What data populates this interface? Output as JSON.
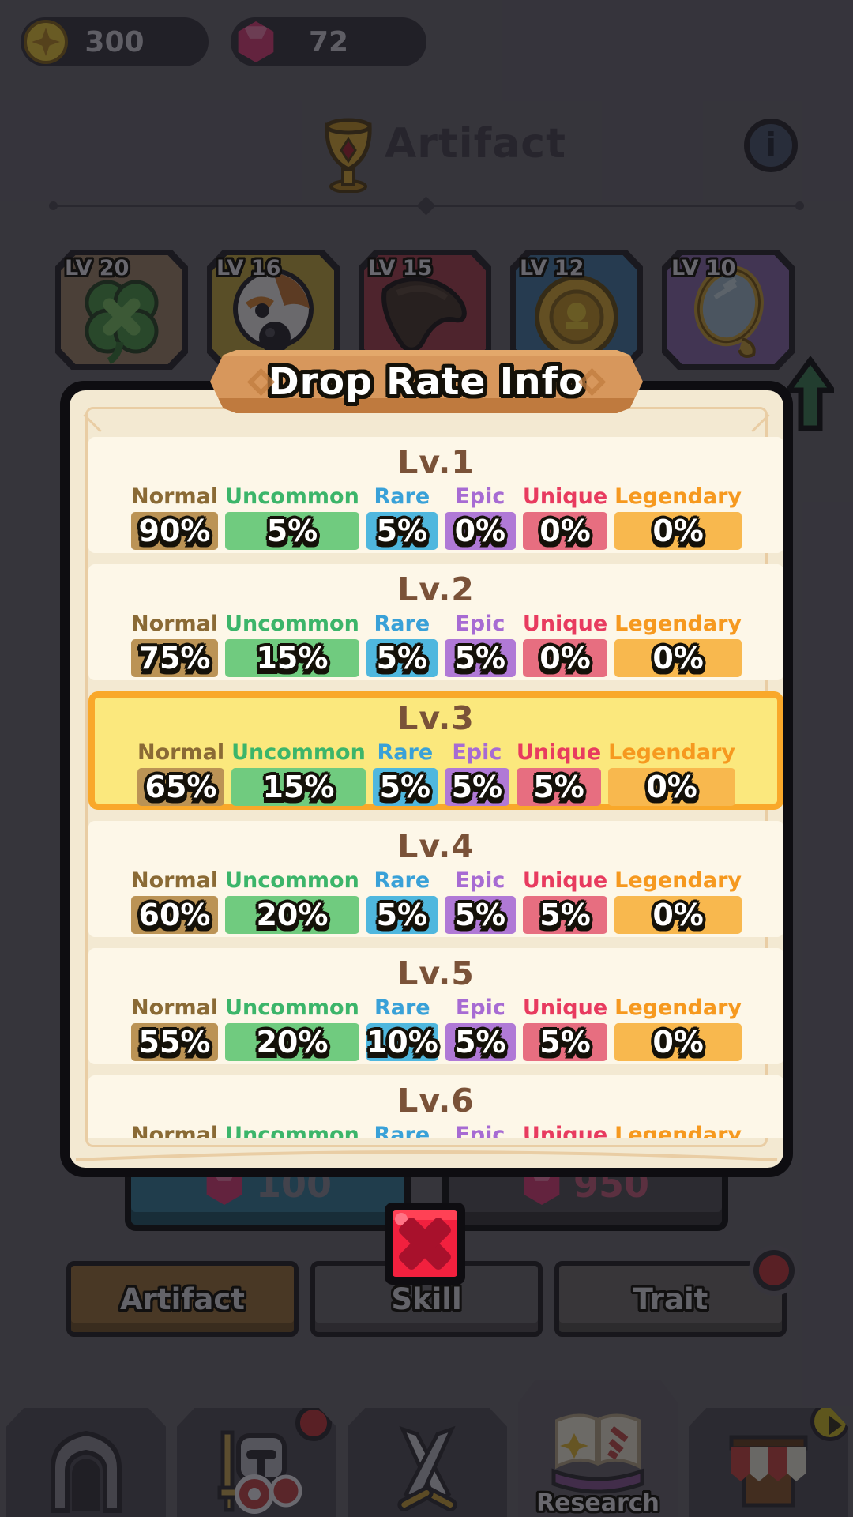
{
  "currency": {
    "gold": "300",
    "gems": "72"
  },
  "header": {
    "title": "Artifact"
  },
  "artifact_cards": [
    {
      "level": "LV 20",
      "icon": "clover",
      "color": "#a0866f"
    },
    {
      "level": "LV 16",
      "icon": "bird",
      "color": "#c2a647"
    },
    {
      "level": "LV 15",
      "icon": "horn",
      "color": "#a84355"
    },
    {
      "level": "LV 12",
      "icon": "medal",
      "color": "#487ba6"
    },
    {
      "level": "LV 10",
      "icon": "mirror",
      "color": "#8a6bae"
    }
  ],
  "modal": {
    "title": "Drop Rate Info",
    "rarities": [
      {
        "label": "Normal",
        "label_color": "#8a6a35",
        "cell_color": "#bb9355"
      },
      {
        "label": "Uncommon",
        "label_color": "#3cb56a",
        "cell_color": "#70cb7f"
      },
      {
        "label": "Rare",
        "label_color": "#39a1d8",
        "cell_color": "#4fb7de"
      },
      {
        "label": "Epic",
        "label_color": "#a76bd3",
        "cell_color": "#b079d6"
      },
      {
        "label": "Unique",
        "label_color": "#e83b5f",
        "cell_color": "#e76e80"
      },
      {
        "label": "Legendary",
        "label_color": "#f6991f",
        "cell_color": "#f8b84e"
      }
    ],
    "levels": [
      {
        "name": "Lv.1",
        "values": [
          "90%",
          "5%",
          "5%",
          "0%",
          "0%",
          "0%"
        ],
        "highlighted": false
      },
      {
        "name": "Lv.2",
        "values": [
          "75%",
          "15%",
          "5%",
          "5%",
          "0%",
          "0%"
        ],
        "highlighted": false
      },
      {
        "name": "Lv.3",
        "values": [
          "65%",
          "15%",
          "5%",
          "5%",
          "5%",
          "0%"
        ],
        "highlighted": true
      },
      {
        "name": "Lv.4",
        "values": [
          "60%",
          "20%",
          "5%",
          "5%",
          "5%",
          "0%"
        ],
        "highlighted": false
      },
      {
        "name": "Lv.5",
        "values": [
          "55%",
          "20%",
          "10%",
          "5%",
          "5%",
          "0%"
        ],
        "highlighted": false
      },
      {
        "name": "Lv.6",
        "values": [],
        "highlighted": false
      }
    ],
    "highlight": {
      "bg": "#fbe87d",
      "border": "#f9a82a"
    },
    "section_bg": "#fdf7e8"
  },
  "upgrade_buttons": [
    {
      "cost": "100",
      "icon": "gem",
      "bg": "#3a7f9e",
      "text_color": "#8e8c9d"
    },
    {
      "cost": "950",
      "icon": "gem",
      "bg": "#57545e",
      "text_color": "#c65f80"
    }
  ],
  "category_tabs": [
    {
      "label": "Artifact",
      "active": true,
      "bg": "#9c7440"
    },
    {
      "label": "Skill",
      "active": false,
      "bg": "#6f6b73"
    },
    {
      "label": "Trait",
      "active": false,
      "bg": "#746f70",
      "badge": "red-dot"
    }
  ],
  "bottom_nav": [
    {
      "icon": "home",
      "active": false
    },
    {
      "icon": "hero",
      "active": false,
      "badge": "red-dot"
    },
    {
      "icon": "battle",
      "active": false
    },
    {
      "icon": "research",
      "active": true,
      "label": "Research"
    },
    {
      "icon": "shop",
      "active": false,
      "badge": "play-arrow"
    }
  ],
  "colors": {
    "banner": "#d7975c",
    "modal_bg": "#f3e9d2",
    "level_title": "#7a5238",
    "close_red": "#f2203e",
    "dim_overlay": "rgba(14,13,18,0.58)"
  }
}
